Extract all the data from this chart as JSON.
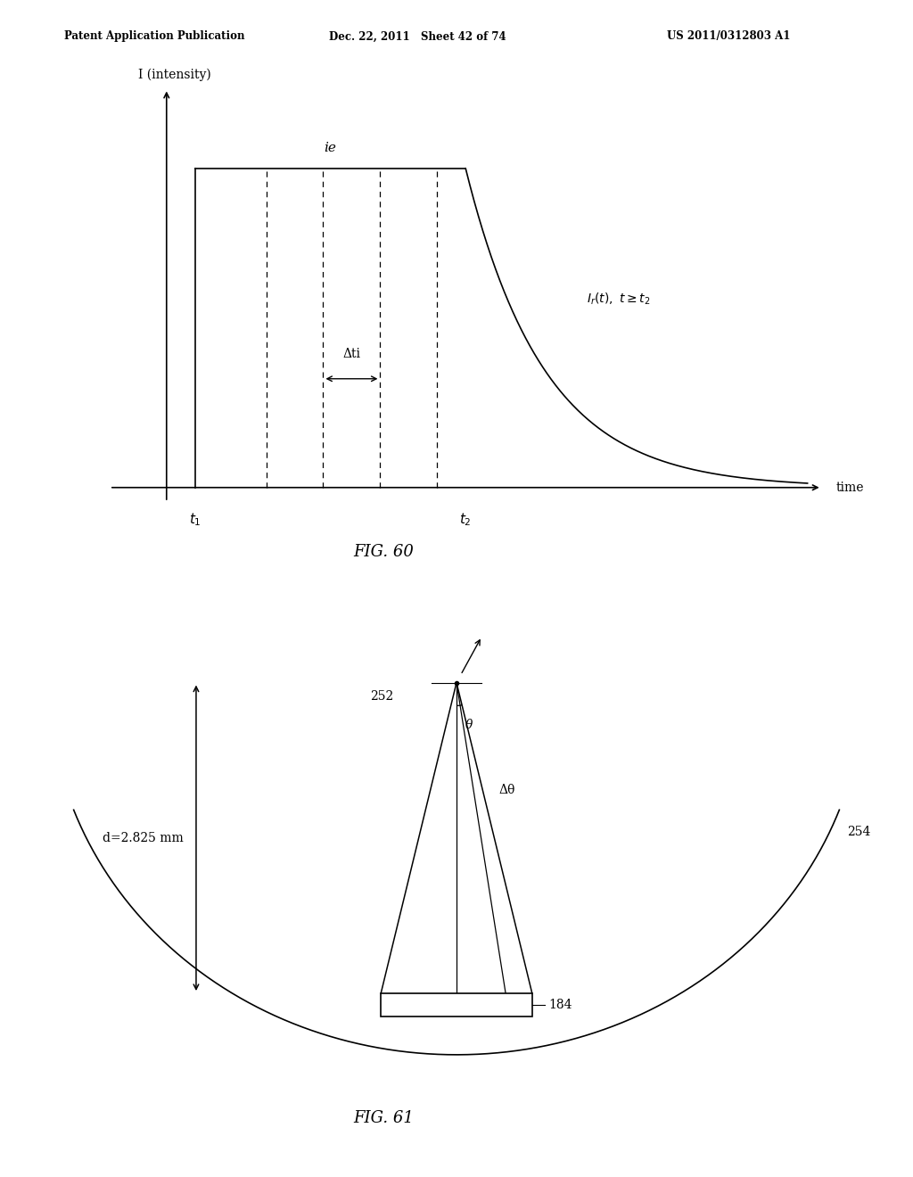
{
  "header_left": "Patent Application Publication",
  "header_mid": "Dec. 22, 2011   Sheet 42 of 74",
  "header_right": "US 2011/0312803 A1",
  "fig60_label": "FIG. 60",
  "fig61_label": "FIG. 61",
  "bg_color": "#ffffff"
}
